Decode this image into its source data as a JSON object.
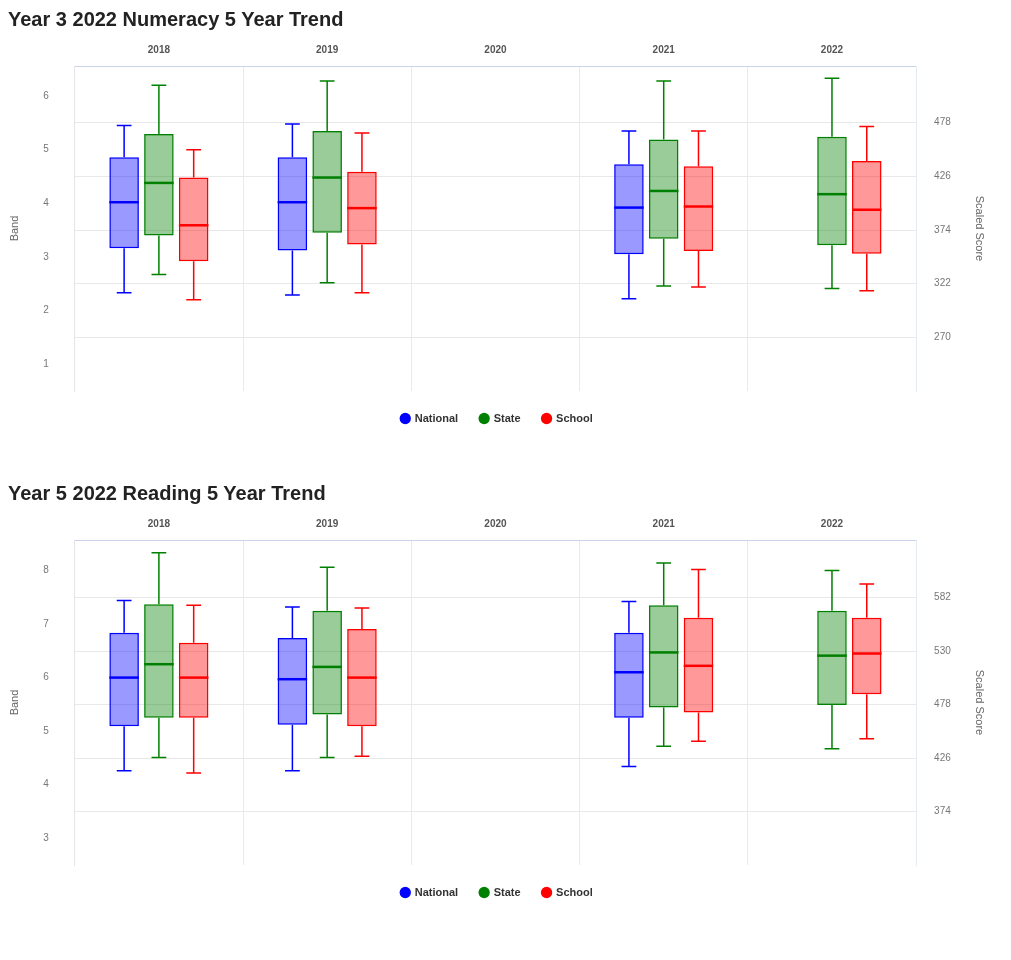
{
  "chart_data": [
    {
      "type": "box",
      "title": "Year 3 2022 Numeracy 5 Year Trend",
      "categories": [
        "2018",
        "2019",
        "2020",
        "2021",
        "2022"
      ],
      "ylabel": "Band",
      "y2label": "Scaled Score",
      "ylim": [
        0.5,
        6.56
      ],
      "yticks": [
        1,
        2,
        3,
        4,
        5,
        6
      ],
      "y2lim": [
        218,
        533
      ],
      "y2ticks": [
        270,
        322,
        374,
        426,
        478
      ],
      "grid": true,
      "legend": "bottom",
      "series": [
        {
          "name": "National",
          "color": "#0000ff",
          "boxes": [
            {
              "low": 2.33,
              "q1": 3.16,
              "median": 4.02,
              "q3": 4.86,
              "high": 5.45
            },
            {
              "low": 2.29,
              "q1": 3.12,
              "median": 4.02,
              "q3": 4.86,
              "high": 5.48
            },
            null,
            {
              "low": 2.22,
              "q1": 3.05,
              "median": 3.92,
              "q3": 4.73,
              "high": 5.35
            },
            null
          ]
        },
        {
          "name": "State",
          "color": "#008000",
          "boxes": [
            {
              "low": 2.67,
              "q1": 3.4,
              "median": 4.38,
              "q3": 5.29,
              "high": 6.2
            },
            {
              "low": 2.52,
              "q1": 3.45,
              "median": 4.48,
              "q3": 5.35,
              "high": 6.28
            },
            null,
            {
              "low": 2.46,
              "q1": 3.34,
              "median": 4.23,
              "q3": 5.19,
              "high": 6.28
            },
            {
              "low": 2.41,
              "q1": 3.22,
              "median": 4.17,
              "q3": 5.24,
              "high": 6.33
            }
          ]
        },
        {
          "name": "School",
          "color": "#ff0000",
          "boxes": [
            {
              "low": 2.2,
              "q1": 2.92,
              "median": 3.59,
              "q3": 4.48,
              "high": 5.0
            },
            {
              "low": 2.33,
              "q1": 3.23,
              "median": 3.91,
              "q3": 4.59,
              "high": 5.31
            },
            null,
            {
              "low": 2.44,
              "q1": 3.11,
              "median": 3.94,
              "q3": 4.69,
              "high": 5.35
            },
            {
              "low": 2.37,
              "q1": 3.06,
              "median": 3.88,
              "q3": 4.79,
              "high": 5.43
            }
          ]
        }
      ]
    },
    {
      "type": "box",
      "title": "Year 5 2022 Reading 5 Year Trend",
      "categories": [
        "2018",
        "2019",
        "2020",
        "2021",
        "2022"
      ],
      "ylabel": "Band",
      "y2label": "Scaled Score",
      "ylim": [
        2.5,
        8.57
      ],
      "yticks": [
        3,
        4,
        5,
        6,
        7,
        8
      ],
      "y2lim": [
        322,
        638
      ],
      "y2ticks": [
        374,
        426,
        478,
        530,
        582
      ],
      "grid": true,
      "legend": "bottom",
      "series": [
        {
          "name": "National",
          "color": "#0000ff",
          "boxes": [
            {
              "low": 4.26,
              "q1": 5.09,
              "median": 6.0,
              "q3": 6.84,
              "high": 7.44
            },
            {
              "low": 4.26,
              "q1": 5.12,
              "median": 5.97,
              "q3": 6.74,
              "high": 7.32
            },
            null,
            {
              "low": 4.34,
              "q1": 5.25,
              "median": 6.1,
              "q3": 6.84,
              "high": 7.42
            },
            null
          ]
        },
        {
          "name": "State",
          "color": "#008000",
          "boxes": [
            {
              "low": 4.51,
              "q1": 5.25,
              "median": 6.25,
              "q3": 7.37,
              "high": 8.33
            },
            {
              "low": 4.51,
              "q1": 5.31,
              "median": 6.2,
              "q3": 7.25,
              "high": 8.06
            },
            null,
            {
              "low": 4.72,
              "q1": 5.44,
              "median": 6.47,
              "q3": 7.35,
              "high": 8.14
            },
            {
              "low": 4.67,
              "q1": 5.49,
              "median": 6.41,
              "q3": 7.25,
              "high": 8.0
            }
          ]
        },
        {
          "name": "School",
          "color": "#ff0000",
          "boxes": [
            {
              "low": 4.22,
              "q1": 5.25,
              "median": 6.0,
              "q3": 6.65,
              "high": 7.35
            },
            {
              "low": 4.53,
              "q1": 5.09,
              "median": 6.0,
              "q3": 6.91,
              "high": 7.3
            },
            null,
            {
              "low": 4.81,
              "q1": 5.35,
              "median": 6.22,
              "q3": 7.12,
              "high": 8.02
            },
            {
              "low": 4.86,
              "q1": 5.69,
              "median": 6.45,
              "q3": 7.12,
              "high": 7.75
            }
          ]
        }
      ]
    }
  ]
}
